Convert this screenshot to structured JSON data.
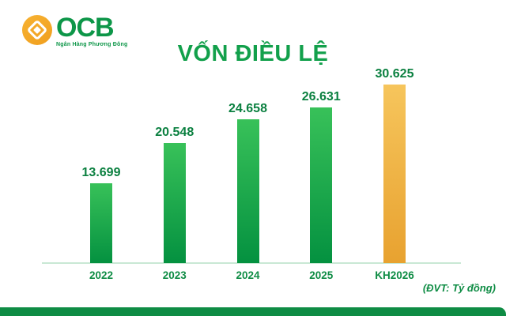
{
  "logo": {
    "brand": "OCB",
    "tagline": "Ngân Hàng Phương Đông",
    "orange": "#F2A024",
    "green": "#0D9648"
  },
  "chart_data": {
    "type": "bar",
    "title": "VỐN ĐIỀU LỆ",
    "unit_note": "(ĐVT: Tỷ đồng)",
    "categories": [
      "2022",
      "2023",
      "2024",
      "2025",
      "KH2026"
    ],
    "values": [
      13699,
      20548,
      24658,
      26631,
      30625
    ],
    "value_labels": [
      "13.699",
      "20.548",
      "24.658",
      "26.631",
      "30.625"
    ],
    "highlight_index": 4,
    "ylim": [
      0,
      30625
    ],
    "grid": false,
    "legend": false,
    "colors": {
      "bar_gradient_top": "#38C159",
      "bar_gradient_bottom": "#049140",
      "highlight_gradient_top": "#F6C55C",
      "highlight_gradient_bottom": "#E8A230",
      "title_color": "#12A04B",
      "value_label_color": "#0B8040",
      "category_label_color": "#0E8C44",
      "axis_line_color": "#C9E8D4",
      "bottom_band_color": "#0E8C44"
    }
  }
}
